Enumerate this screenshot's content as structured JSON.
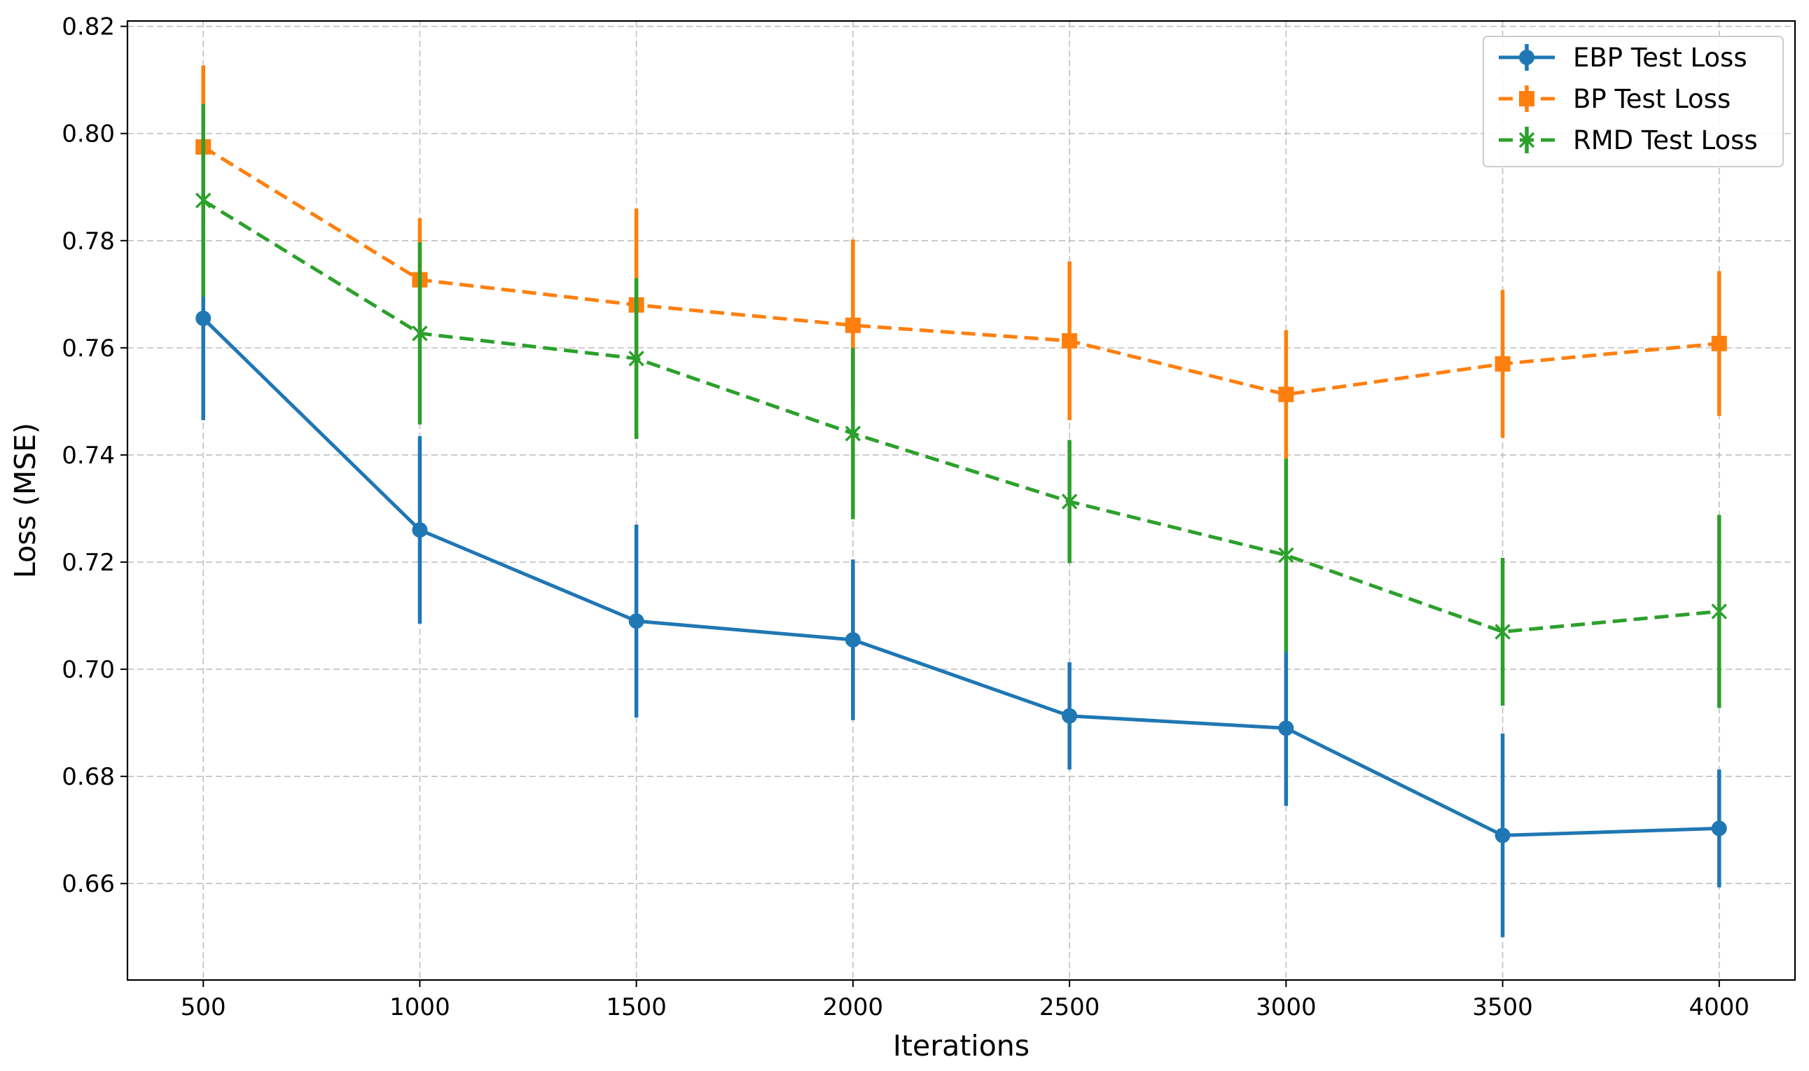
{
  "chart_data": {
    "type": "line",
    "title": "",
    "xlabel": "Iterations",
    "ylabel": "Loss (MSE)",
    "x": [
      500,
      1000,
      1500,
      2000,
      2500,
      3000,
      3500,
      4000
    ],
    "x_ticks": [
      "500",
      "1000",
      "1500",
      "2000",
      "2500",
      "3000",
      "3500",
      "4000"
    ],
    "y_ticks": [
      "0.66",
      "0.68",
      "0.70",
      "0.72",
      "0.74",
      "0.76",
      "0.78",
      "0.80",
      "0.82"
    ],
    "xlim": [
      325,
      4175
    ],
    "ylim": [
      0.642,
      0.821
    ],
    "grid": true,
    "legend_position": "top-right",
    "error_bars": true,
    "series": [
      {
        "name": "EBP Test Loss",
        "color": "#1f77b4",
        "line_style": "solid",
        "marker": "circle",
        "values": [
          0.7655,
          0.726,
          0.709,
          0.7055,
          0.6913,
          0.689,
          0.669,
          0.6703
        ],
        "errors": [
          0.019,
          0.0175,
          0.018,
          0.015,
          0.01,
          0.0145,
          0.019,
          0.011
        ]
      },
      {
        "name": "BP Test Loss",
        "color": "#ff7f0e",
        "line_style": "dashed",
        "marker": "square",
        "values": [
          0.7975,
          0.7727,
          0.768,
          0.7642,
          0.7613,
          0.7513,
          0.757,
          0.7608
        ],
        "errors": [
          0.0152,
          0.0115,
          0.018,
          0.016,
          0.0148,
          0.012,
          0.0138,
          0.0135
        ]
      },
      {
        "name": "RMD Test Loss",
        "color": "#2ca02c",
        "line_style": "dashed",
        "marker": "x",
        "values": [
          0.7875,
          0.7627,
          0.758,
          0.744,
          0.7313,
          0.7213,
          0.707,
          0.7108
        ],
        "errors": [
          0.018,
          0.017,
          0.015,
          0.016,
          0.0115,
          0.018,
          0.0138,
          0.018
        ]
      }
    ]
  }
}
